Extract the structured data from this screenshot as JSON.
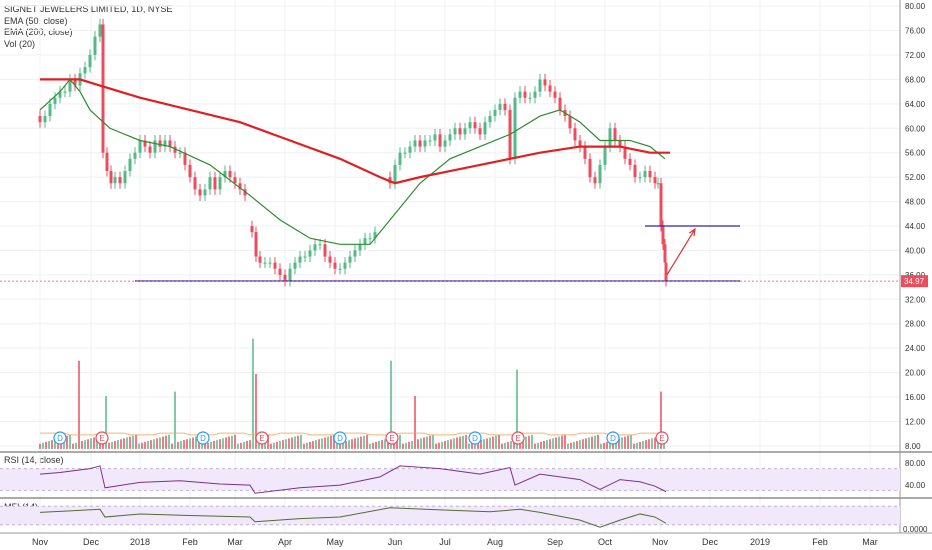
{
  "chart_data": {
    "type": "candlestick",
    "title": "SIGNET JEWELERS LIMITED, 1D, NYSE",
    "indicators": [
      "EMA (50, close)",
      "EMA (200, close)",
      "Vol (20)"
    ],
    "price_axis": {
      "ticks": [
        80.0,
        76.0,
        72.0,
        68.0,
        64.0,
        60.0,
        56.0,
        52.0,
        48.0,
        44.0,
        40.0,
        36.0,
        32.0,
        28.0,
        24.0,
        20.0,
        16.0,
        12.0,
        8.0
      ],
      "ylim": [
        7,
        81
      ],
      "last_price": "34.97",
      "last_price_value": 34.97
    },
    "x_axis": {
      "labels": [
        "Nov",
        "Dec",
        "2018",
        "Feb",
        "Mar",
        "Apr",
        "May",
        "Jun",
        "Jul",
        "Aug",
        "Sep",
        "Oct",
        "Nov",
        "Dec",
        "2019",
        "Feb",
        "Mar"
      ],
      "label_days": [
        0,
        51,
        100,
        150,
        195,
        245,
        295,
        355,
        405,
        455,
        515,
        565,
        620,
        670,
        720,
        780,
        830
      ]
    },
    "price_series": [
      {
        "d": 0,
        "c": 61
      },
      {
        "d": 5,
        "c": 62
      },
      {
        "d": 10,
        "c": 64
      },
      {
        "d": 15,
        "c": 65
      },
      {
        "d": 20,
        "c": 66
      },
      {
        "d": 25,
        "c": 66
      },
      {
        "d": 30,
        "c": 68
      },
      {
        "d": 35,
        "c": 67
      },
      {
        "d": 40,
        "c": 69
      },
      {
        "d": 45,
        "c": 70
      },
      {
        "d": 50,
        "c": 72
      },
      {
        "d": 55,
        "c": 75
      },
      {
        "d": 60,
        "c": 77
      },
      {
        "d": 63,
        "c": 56
      },
      {
        "d": 67,
        "c": 53
      },
      {
        "d": 71,
        "c": 51
      },
      {
        "d": 75,
        "c": 52
      },
      {
        "d": 80,
        "c": 51
      },
      {
        "d": 85,
        "c": 53
      },
      {
        "d": 90,
        "c": 55
      },
      {
        "d": 95,
        "c": 56
      },
      {
        "d": 100,
        "c": 58
      },
      {
        "d": 105,
        "c": 57
      },
      {
        "d": 110,
        "c": 56
      },
      {
        "d": 115,
        "c": 58
      },
      {
        "d": 120,
        "c": 57
      },
      {
        "d": 125,
        "c": 58
      },
      {
        "d": 130,
        "c": 57
      },
      {
        "d": 135,
        "c": 56
      },
      {
        "d": 140,
        "c": 56
      },
      {
        "d": 145,
        "c": 54
      },
      {
        "d": 150,
        "c": 52
      },
      {
        "d": 155,
        "c": 50
      },
      {
        "d": 160,
        "c": 49
      },
      {
        "d": 165,
        "c": 50
      },
      {
        "d": 170,
        "c": 52
      },
      {
        "d": 175,
        "c": 50
      },
      {
        "d": 180,
        "c": 52
      },
      {
        "d": 185,
        "c": 53
      },
      {
        "d": 190,
        "c": 52
      },
      {
        "d": 195,
        "c": 51
      },
      {
        "d": 200,
        "c": 50
      },
      {
        "d": 205,
        "c": 49
      },
      {
        "d": 212,
        "c": 43
      },
      {
        "d": 216,
        "c": 39
      },
      {
        "d": 220,
        "c": 38
      },
      {
        "d": 225,
        "c": 38
      },
      {
        "d": 230,
        "c": 38
      },
      {
        "d": 235,
        "c": 37
      },
      {
        "d": 240,
        "c": 36
      },
      {
        "d": 245,
        "c": 35
      },
      {
        "d": 250,
        "c": 37
      },
      {
        "d": 255,
        "c": 38
      },
      {
        "d": 260,
        "c": 39
      },
      {
        "d": 265,
        "c": 39
      },
      {
        "d": 270,
        "c": 40
      },
      {
        "d": 275,
        "c": 41
      },
      {
        "d": 280,
        "c": 41
      },
      {
        "d": 285,
        "c": 39
      },
      {
        "d": 290,
        "c": 38
      },
      {
        "d": 295,
        "c": 37
      },
      {
        "d": 300,
        "c": 37
      },
      {
        "d": 305,
        "c": 38
      },
      {
        "d": 310,
        "c": 39
      },
      {
        "d": 315,
        "c": 40
      },
      {
        "d": 320,
        "c": 41
      },
      {
        "d": 325,
        "c": 42
      },
      {
        "d": 330,
        "c": 42
      },
      {
        "d": 335,
        "c": 43
      },
      {
        "d": 350,
        "c": 51
      },
      {
        "d": 355,
        "c": 54
      },
      {
        "d": 360,
        "c": 56
      },
      {
        "d": 365,
        "c": 56
      },
      {
        "d": 370,
        "c": 57
      },
      {
        "d": 375,
        "c": 58
      },
      {
        "d": 380,
        "c": 57
      },
      {
        "d": 385,
        "c": 58
      },
      {
        "d": 390,
        "c": 58
      },
      {
        "d": 395,
        "c": 59
      },
      {
        "d": 400,
        "c": 57
      },
      {
        "d": 405,
        "c": 58
      },
      {
        "d": 410,
        "c": 59
      },
      {
        "d": 415,
        "c": 60
      },
      {
        "d": 420,
        "c": 59
      },
      {
        "d": 425,
        "c": 60
      },
      {
        "d": 430,
        "c": 61
      },
      {
        "d": 435,
        "c": 60
      },
      {
        "d": 440,
        "c": 59
      },
      {
        "d": 445,
        "c": 61
      },
      {
        "d": 450,
        "c": 62
      },
      {
        "d": 455,
        "c": 63
      },
      {
        "d": 460,
        "c": 64
      },
      {
        "d": 465,
        "c": 63
      },
      {
        "d": 470,
        "c": 55
      },
      {
        "d": 475,
        "c": 65
      },
      {
        "d": 480,
        "c": 66
      },
      {
        "d": 485,
        "c": 65
      },
      {
        "d": 490,
        "c": 65
      },
      {
        "d": 495,
        "c": 66
      },
      {
        "d": 500,
        "c": 68
      },
      {
        "d": 505,
        "c": 67
      },
      {
        "d": 510,
        "c": 66
      },
      {
        "d": 515,
        "c": 65
      },
      {
        "d": 520,
        "c": 63
      },
      {
        "d": 525,
        "c": 62
      },
      {
        "d": 530,
        "c": 60
      },
      {
        "d": 535,
        "c": 58
      },
      {
        "d": 540,
        "c": 57
      },
      {
        "d": 545,
        "c": 55
      },
      {
        "d": 550,
        "c": 52
      },
      {
        "d": 555,
        "c": 51
      },
      {
        "d": 560,
        "c": 54
      },
      {
        "d": 565,
        "c": 57
      },
      {
        "d": 570,
        "c": 60
      },
      {
        "d": 575,
        "c": 58
      },
      {
        "d": 580,
        "c": 57
      },
      {
        "d": 585,
        "c": 55
      },
      {
        "d": 590,
        "c": 54
      },
      {
        "d": 595,
        "c": 52
      },
      {
        "d": 600,
        "c": 52
      },
      {
        "d": 605,
        "c": 53
      },
      {
        "d": 610,
        "c": 52
      },
      {
        "d": 615,
        "c": 51
      },
      {
        "d": 618,
        "c": 51
      },
      {
        "d": 621,
        "c": 44
      },
      {
        "d": 623,
        "c": 41
      },
      {
        "d": 625,
        "c": 38
      },
      {
        "d": 626,
        "c": 35
      }
    ],
    "ema50": [
      [
        0,
        63
      ],
      [
        20,
        66
      ],
      [
        30,
        68
      ],
      [
        40,
        66
      ],
      [
        50,
        63
      ],
      [
        70,
        60
      ],
      [
        100,
        58
      ],
      [
        130,
        57
      ],
      [
        170,
        54
      ],
      [
        210,
        49
      ],
      [
        240,
        45
      ],
      [
        270,
        42
      ],
      [
        300,
        41
      ],
      [
        330,
        41
      ],
      [
        350,
        45
      ],
      [
        380,
        51
      ],
      [
        410,
        55
      ],
      [
        440,
        57
      ],
      [
        470,
        59
      ],
      [
        500,
        62
      ],
      [
        520,
        63
      ],
      [
        540,
        61
      ],
      [
        560,
        58
      ],
      [
        590,
        58
      ],
      [
        610,
        57
      ],
      [
        625,
        55
      ]
    ],
    "ema200": [
      [
        0,
        68
      ],
      [
        40,
        68
      ],
      [
        60,
        67
      ],
      [
        100,
        65
      ],
      [
        150,
        63
      ],
      [
        200,
        61
      ],
      [
        250,
        58
      ],
      [
        300,
        55
      ],
      [
        340,
        52
      ],
      [
        355,
        51
      ],
      [
        380,
        52
      ],
      [
        410,
        53
      ],
      [
        440,
        54
      ],
      [
        470,
        55
      ],
      [
        500,
        56
      ],
      [
        540,
        57
      ],
      [
        580,
        57
      ],
      [
        610,
        56
      ],
      [
        630,
        56
      ]
    ],
    "volume_spikes": [
      [
        40,
        20
      ],
      [
        67,
        12
      ],
      [
        135,
        13
      ],
      [
        212,
        25
      ],
      [
        215,
        17
      ],
      [
        352,
        20
      ],
      [
        375,
        12
      ],
      [
        478,
        18
      ],
      [
        622,
        13
      ]
    ],
    "horizontal_lines": [
      {
        "price": 35.0,
        "d_from": 95,
        "d_to": 700
      },
      {
        "price": 44.0,
        "d_from": 605,
        "d_to": 700
      }
    ],
    "projection_arrow": {
      "from": [
        627,
        36
      ],
      "to": [
        655,
        43.5
      ]
    },
    "event_markers": [
      {
        "label": "D",
        "d": 20,
        "type": "dividend"
      },
      {
        "label": "E",
        "d": 62,
        "type": "earnings"
      },
      {
        "label": "D",
        "d": 163,
        "type": "dividend"
      },
      {
        "label": "E",
        "d": 222,
        "type": "earnings"
      },
      {
        "label": "D",
        "d": 300,
        "type": "dividend"
      },
      {
        "label": "E",
        "d": 352,
        "type": "earnings"
      },
      {
        "label": "D",
        "d": 435,
        "type": "dividend"
      },
      {
        "label": "E",
        "d": 478,
        "type": "earnings"
      },
      {
        "label": "D",
        "d": 573,
        "type": "dividend"
      },
      {
        "label": "E",
        "d": 622,
        "type": "earnings"
      }
    ],
    "rsi": {
      "title": "RSI (14, close)",
      "ticks": [
        80.0,
        40.0
      ],
      "ylim": [
        20,
        95
      ],
      "values": [
        [
          0,
          60
        ],
        [
          20,
          63
        ],
        [
          50,
          70
        ],
        [
          60,
          75
        ],
        [
          65,
          35
        ],
        [
          100,
          45
        ],
        [
          140,
          48
        ],
        [
          180,
          42
        ],
        [
          210,
          40
        ],
        [
          215,
          25
        ],
        [
          260,
          35
        ],
        [
          300,
          40
        ],
        [
          340,
          55
        ],
        [
          360,
          75
        ],
        [
          400,
          70
        ],
        [
          440,
          60
        ],
        [
          470,
          72
        ],
        [
          475,
          40
        ],
        [
          500,
          60
        ],
        [
          540,
          50
        ],
        [
          560,
          32
        ],
        [
          580,
          50
        ],
        [
          600,
          46
        ],
        [
          615,
          38
        ],
        [
          626,
          28
        ]
      ],
      "upper": 70,
      "lower": 30
    },
    "mfi": {
      "title": "MFI (14)",
      "ticks": [
        0.0
      ],
      "ylim": [
        0,
        100
      ],
      "values": [
        [
          0,
          60
        ],
        [
          30,
          65
        ],
        [
          60,
          70
        ],
        [
          65,
          45
        ],
        [
          100,
          55
        ],
        [
          150,
          50
        ],
        [
          210,
          45
        ],
        [
          215,
          30
        ],
        [
          260,
          40
        ],
        [
          300,
          45
        ],
        [
          350,
          75
        ],
        [
          400,
          68
        ],
        [
          450,
          62
        ],
        [
          480,
          70
        ],
        [
          500,
          60
        ],
        [
          540,
          35
        ],
        [
          560,
          12
        ],
        [
          580,
          35
        ],
        [
          600,
          55
        ],
        [
          615,
          45
        ],
        [
          626,
          25
        ]
      ]
    },
    "colors": {
      "up": "#53b987",
      "down": "#eb4d5c",
      "ema50": "#2e8b2e",
      "ema200": "#e02020",
      "hline": "#3320a8",
      "arrow": "#e03030",
      "rsi": "#7b2f8f",
      "mfi": "#556b2f",
      "band": "#f1e8fb",
      "price_tag": "#eb4d5c"
    }
  }
}
